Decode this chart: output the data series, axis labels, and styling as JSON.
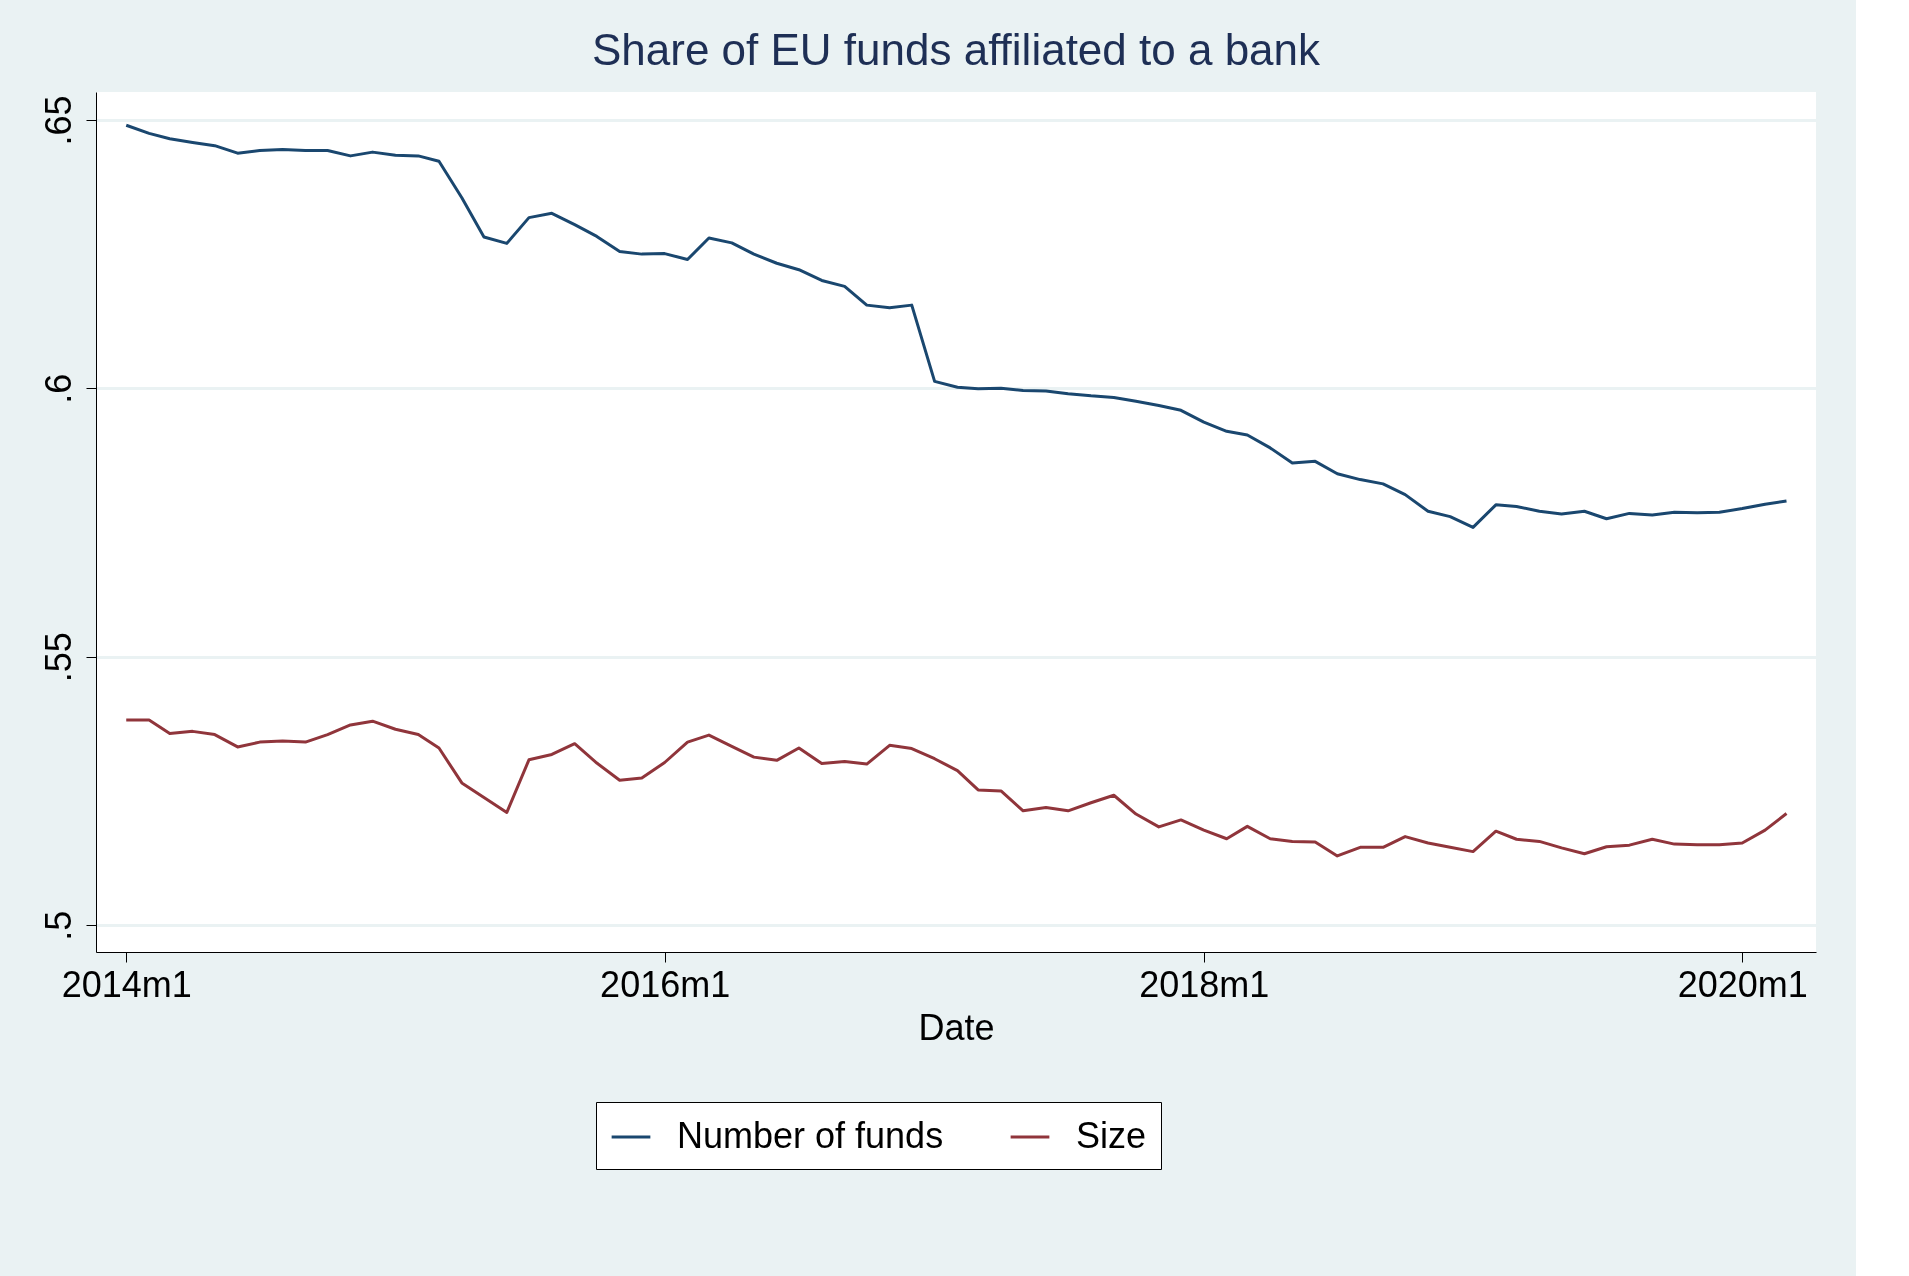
{
  "chart_data": {
    "type": "line",
    "title": "Share of EU funds affiliated to a bank",
    "xlabel": "Date",
    "x": [
      "2014-01",
      "2014-02",
      "2014-03",
      "2014-04",
      "2014-05",
      "2014-06",
      "2014-07",
      "2014-08",
      "2014-09",
      "2014-10",
      "2014-11",
      "2014-12",
      "2015-01",
      "2015-02",
      "2015-03",
      "2015-04",
      "2015-05",
      "2015-06",
      "2015-07",
      "2015-08",
      "2015-09",
      "2015-10",
      "2015-11",
      "2015-12",
      "2016-01",
      "2016-02",
      "2016-03",
      "2016-04",
      "2016-05",
      "2016-06",
      "2016-07",
      "2016-08",
      "2016-09",
      "2016-10",
      "2016-11",
      "2016-12",
      "2017-01",
      "2017-02",
      "2017-03",
      "2017-04",
      "2017-05",
      "2017-06",
      "2017-07",
      "2017-08",
      "2017-09",
      "2017-10",
      "2017-11",
      "2017-12",
      "2018-01",
      "2018-02",
      "2018-03",
      "2018-04",
      "2018-05",
      "2018-06",
      "2018-07",
      "2018-08",
      "2018-09",
      "2018-10",
      "2018-11",
      "2018-12",
      "2019-01",
      "2019-02",
      "2019-03",
      "2019-04",
      "2019-05",
      "2019-06",
      "2019-07",
      "2019-08",
      "2019-09",
      "2019-10",
      "2019-11",
      "2019-12",
      "2020-01",
      "2020-02",
      "2020-03"
    ],
    "series": [
      {
        "name": "Number of funds",
        "color": "#1a476f",
        "values": [
          0.649,
          0.6475,
          0.6465,
          0.6458,
          0.6452,
          0.6438,
          0.6443,
          0.6445,
          0.6443,
          0.6443,
          0.6433,
          0.644,
          0.6434,
          0.6433,
          0.6423,
          0.6355,
          0.6282,
          0.627,
          0.6318,
          0.6326,
          0.6305,
          0.6283,
          0.6255,
          0.625,
          0.6251,
          0.624,
          0.628,
          0.6271,
          0.625,
          0.6233,
          0.6221,
          0.6201,
          0.619,
          0.6155,
          0.615,
          0.6155,
          0.6013,
          0.6002,
          0.5999,
          0.6,
          0.5996,
          0.5995,
          0.599,
          0.5986,
          0.5983,
          0.5976,
          0.5968,
          0.5959,
          0.5937,
          0.592,
          0.5913,
          0.5889,
          0.5861,
          0.5864,
          0.5841,
          0.583,
          0.5822,
          0.5802,
          0.5771,
          0.5761,
          0.5741,
          0.5783,
          0.578,
          0.5771,
          0.5766,
          0.5771,
          0.5757,
          0.5767,
          0.5764,
          0.5769,
          0.5768,
          0.5769,
          0.5776,
          0.5784,
          0.579
        ]
      },
      {
        "name": "Size",
        "color": "#90353b",
        "values": [
          0.5382,
          0.5382,
          0.5357,
          0.5361,
          0.5355,
          0.5332,
          0.5341,
          0.5343,
          0.5341,
          0.5355,
          0.5373,
          0.538,
          0.5365,
          0.5355,
          0.533,
          0.5265,
          0.5238,
          0.521,
          0.5308,
          0.5318,
          0.5338,
          0.5302,
          0.527,
          0.5274,
          0.5303,
          0.5341,
          0.5354,
          0.5333,
          0.5313,
          0.5307,
          0.533,
          0.5301,
          0.5305,
          0.53,
          0.5335,
          0.5329,
          0.531,
          0.5288,
          0.5252,
          0.525,
          0.5213,
          0.5219,
          0.5213,
          0.5228,
          0.5242,
          0.5207,
          0.5183,
          0.5196,
          0.5177,
          0.5161,
          0.5184,
          0.5161,
          0.5156,
          0.5155,
          0.5129,
          0.5145,
          0.5145,
          0.5165,
          0.5153,
          0.5145,
          0.5137,
          0.5175,
          0.516,
          0.5156,
          0.5144,
          0.5133,
          0.5146,
          0.5149,
          0.516,
          0.5151,
          0.515,
          0.515,
          0.5153,
          0.5177,
          0.5208
        ]
      }
    ],
    "xlim": [
      "2013-11-21",
      "2020-04-10"
    ],
    "xticks": [
      {
        "value": "2014-01",
        "label": "2014m1"
      },
      {
        "value": "2016-01",
        "label": "2016m1"
      },
      {
        "value": "2018-01",
        "label": "2018m1"
      },
      {
        "value": "2020-01",
        "label": "2020m1"
      }
    ],
    "ylim": [
      0.495,
      0.6552
    ],
    "yticks": [
      {
        "value": 0.5,
        "label": ".5"
      },
      {
        "value": 0.55,
        "label": ".55"
      },
      {
        "value": 0.6,
        "label": ".6"
      },
      {
        "value": 0.65,
        "label": ".65"
      }
    ],
    "grid": "y",
    "legend": "bottom",
    "marker": "none",
    "line_style": "solid"
  }
}
